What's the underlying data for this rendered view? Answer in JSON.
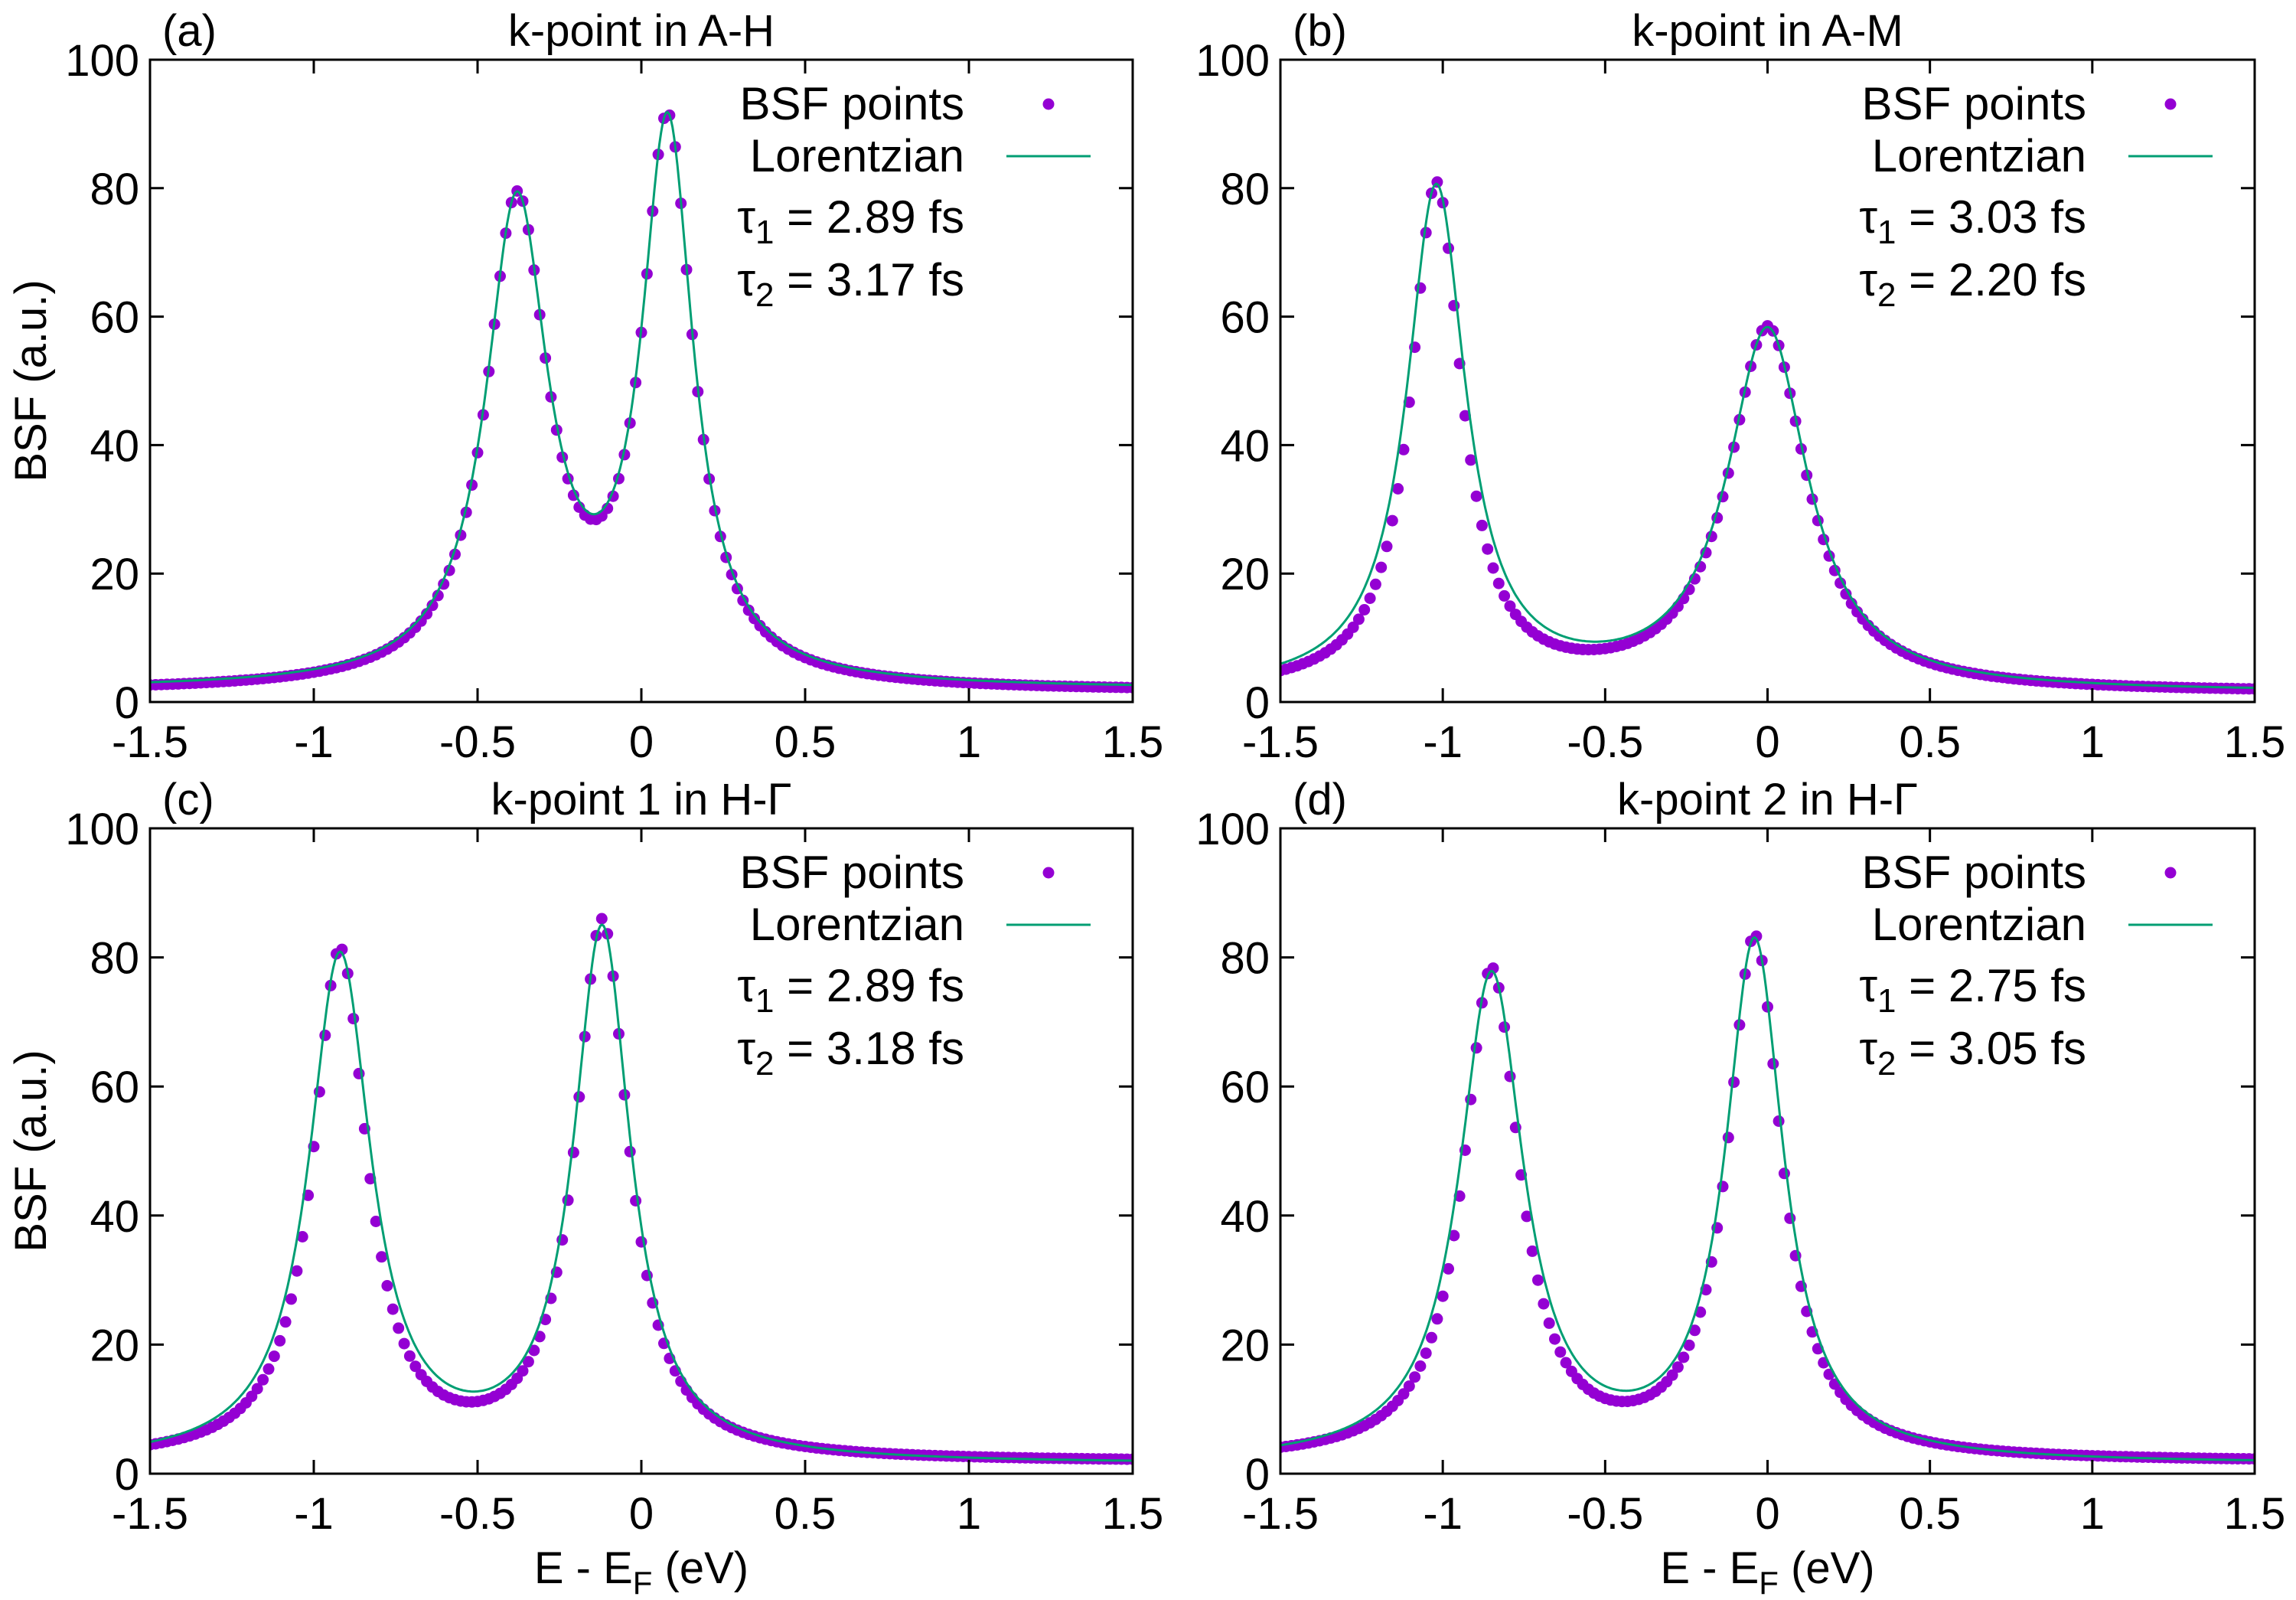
{
  "figure": {
    "xlabel_main": "E - E",
    "xlabel_sub": "F",
    "xlabel_unit": " (eV)",
    "ylabel": "BSF (a.u.)",
    "legend_points": "BSF points",
    "legend_line": "Lorentzian",
    "tau_symbol": "τ",
    "fs_unit": "fs"
  },
  "colors": {
    "points": "#9400d3",
    "line": "#009e73",
    "axis": "#000000"
  },
  "chart_data": [
    {
      "type": "scatter",
      "panel": "(a)",
      "title": "k-point in A-H",
      "tau1": "2.89",
      "tau2": "3.17",
      "xlim": [
        -1.5,
        1.5
      ],
      "ylim": [
        0,
        100
      ],
      "xticks": [
        "-1.5",
        "-1",
        "-0.5",
        "0",
        "0.5",
        "1",
        "1.5"
      ],
      "yticks": [
        "0",
        "20",
        "40",
        "60",
        "80",
        "100"
      ],
      "show_xlabel": false,
      "show_ylabel": true,
      "lorentzian": {
        "baseline": 2.0,
        "peaks": [
          {
            "e0": -0.38,
            "A": 74,
            "w": 0.115
          },
          {
            "e0": 0.08,
            "A": 85.5,
            "w": 0.095
          }
        ]
      },
      "points": {
        "baseline": 1.6,
        "peaks": [
          {
            "e0": -0.38,
            "A": 74.5,
            "w": 0.113
          },
          {
            "e0": 0.08,
            "A": 86,
            "w": 0.094
          }
        ],
        "n": 175
      }
    },
    {
      "type": "scatter",
      "panel": "(b)",
      "title": "k-point in A-M",
      "tau1": "3.03",
      "tau2": "2.20",
      "xlim": [
        -1.5,
        1.5
      ],
      "ylim": [
        0,
        100
      ],
      "xticks": [
        "-1.5",
        "-1",
        "-0.5",
        "0",
        "0.5",
        "1",
        "1.5"
      ],
      "yticks": [
        "0",
        "20",
        "40",
        "60",
        "80",
        "100"
      ],
      "show_xlabel": false,
      "show_ylabel": false,
      "lorentzian": {
        "baseline": 1.5,
        "peaks": [
          {
            "e0": -1.02,
            "A": 78,
            "w": 0.11
          },
          {
            "e0": 0.0,
            "A": 56,
            "w": 0.15
          }
        ]
      },
      "points": {
        "baseline": 1.4,
        "peaks": [
          {
            "e0": -1.02,
            "A": 78.5,
            "w": 0.095
          },
          {
            "e0": 0.0,
            "A": 56.5,
            "w": 0.145
          }
        ],
        "n": 175
      }
    },
    {
      "type": "scatter",
      "panel": "(c)",
      "title": "k-point 1 in H-Γ",
      "tau1": "2.89",
      "tau2": "3.18",
      "xlim": [
        -1.5,
        1.5
      ],
      "ylim": [
        0,
        100
      ],
      "xticks": [
        "-1.5",
        "-1",
        "-0.5",
        "0",
        "0.5",
        "1",
        "1.5"
      ],
      "yticks": [
        "0",
        "20",
        "40",
        "60",
        "80",
        "100"
      ],
      "show_xlabel": true,
      "show_ylabel": true,
      "lorentzian": {
        "baseline": 1.5,
        "peaks": [
          {
            "e0": -0.92,
            "A": 78,
            "w": 0.115
          },
          {
            "e0": -0.12,
            "A": 82,
            "w": 0.105
          }
        ]
      },
      "points": {
        "baseline": 1.8,
        "peaks": [
          {
            "e0": -0.92,
            "A": 78.5,
            "w": 0.1
          },
          {
            "e0": -0.12,
            "A": 83,
            "w": 0.098
          }
        ],
        "n": 175
      }
    },
    {
      "type": "scatter",
      "panel": "(d)",
      "title": "k-point 2 in H-Γ",
      "tau1": "2.75",
      "tau2": "3.05",
      "xlim": [
        -1.5,
        1.5
      ],
      "ylim": [
        0,
        100
      ],
      "xticks": [
        "-1.5",
        "-1",
        "-0.5",
        "0",
        "0.5",
        "1",
        "1.5"
      ],
      "yticks": [
        "0",
        "20",
        "40",
        "60",
        "80",
        "100"
      ],
      "show_xlabel": true,
      "show_ylabel": false,
      "lorentzian": {
        "baseline": 1.5,
        "peaks": [
          {
            "e0": -0.85,
            "A": 75,
            "w": 0.12
          },
          {
            "e0": -0.04,
            "A": 80,
            "w": 0.108
          }
        ]
      },
      "points": {
        "baseline": 1.8,
        "peaks": [
          {
            "e0": -0.85,
            "A": 75.5,
            "w": 0.105
          },
          {
            "e0": -0.04,
            "A": 80.5,
            "w": 0.1
          }
        ],
        "n": 175
      }
    }
  ]
}
